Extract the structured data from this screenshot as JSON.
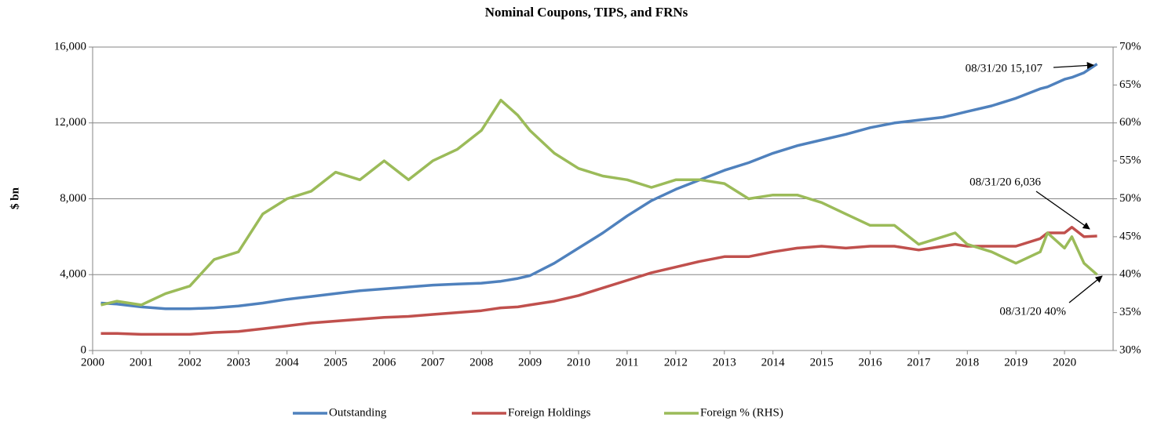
{
  "chart_data": {
    "type": "line",
    "title": "Nominal Coupons, TIPS, and FRNs",
    "y_label": "$ bn",
    "x": [
      2000.17,
      2000.5,
      2001.0,
      2001.5,
      2002.0,
      2002.5,
      2003.0,
      2003.5,
      2004.0,
      2004.5,
      2005.0,
      2005.5,
      2006.0,
      2006.5,
      2007.0,
      2007.5,
      2008.0,
      2008.4,
      2008.75,
      2009.0,
      2009.5,
      2010.0,
      2010.5,
      2011.0,
      2011.5,
      2012.0,
      2012.5,
      2013.0,
      2013.5,
      2014.0,
      2014.5,
      2015.0,
      2015.5,
      2016.0,
      2016.5,
      2017.0,
      2017.5,
      2017.75,
      2018.0,
      2018.5,
      2019.0,
      2019.5,
      2019.65,
      2020.0,
      2020.15,
      2020.4,
      2020.67
    ],
    "series": [
      {
        "name": "Outstanding",
        "color": "#4f81bd",
        "values": [
          2500,
          2450,
          2300,
          2200,
          2200,
          2250,
          2350,
          2500,
          2700,
          2850,
          3000,
          3150,
          3250,
          3350,
          3450,
          3500,
          3550,
          3650,
          3800,
          3950,
          4600,
          5400,
          6200,
          7100,
          7900,
          8500,
          9000,
          9500,
          9900,
          10400,
          10800,
          11100,
          11400,
          11750,
          12000,
          12150,
          12300,
          12450,
          12600,
          12900,
          13300,
          13800,
          13900,
          14300,
          14400,
          14650,
          15107
        ]
      },
      {
        "name": "Foreign Holdings",
        "color": "#c0504d",
        "values": [
          900,
          900,
          850,
          850,
          850,
          950,
          1000,
          1150,
          1300,
          1450,
          1550,
          1650,
          1750,
          1800,
          1900,
          2000,
          2100,
          2250,
          2300,
          2400,
          2600,
          2900,
          3300,
          3700,
          4100,
          4400,
          4700,
          4950,
          4950,
          5200,
          5400,
          5500,
          5400,
          5500,
          5500,
          5300,
          5500,
          5600,
          5500,
          5500,
          5500,
          5900,
          6200,
          6200,
          6500,
          6000,
          6036
        ]
      },
      {
        "name": "Foreign % (RHS)",
        "color": "#9bbb59",
        "axis": "y2",
        "values": [
          36,
          36.5,
          36,
          37.5,
          38.5,
          42,
          43,
          48,
          50,
          51,
          53.5,
          52.5,
          55,
          52.5,
          55,
          56.5,
          59,
          63,
          61,
          59,
          56,
          54,
          53,
          52.5,
          51.5,
          52.5,
          52.5,
          52,
          50,
          50.5,
          50.5,
          49.5,
          48,
          46.5,
          46.5,
          44,
          45,
          45.5,
          44,
          43,
          41.5,
          43,
          45.5,
          43.5,
          45,
          41.5,
          40
        ]
      }
    ],
    "xlim": [
      2000,
      2021
    ],
    "xticks": [
      2000,
      2001,
      2002,
      2003,
      2004,
      2005,
      2006,
      2007,
      2008,
      2009,
      2010,
      2011,
      2012,
      2013,
      2014,
      2015,
      2016,
      2017,
      2018,
      2019,
      2020
    ],
    "ylim": [
      0,
      16000
    ],
    "yticks": [
      0,
      {
        "value": 4000,
        "label": "4,000"
      },
      {
        "value": 8000,
        "label": "8,000"
      },
      {
        "value": 12000,
        "label": "12,000"
      },
      {
        "value": 16000,
        "label": "16,000"
      }
    ],
    "y2lim": [
      30,
      70
    ],
    "y2ticks": [
      {
        "value": 30,
        "label": "30%"
      },
      {
        "value": 35,
        "label": "35%"
      },
      {
        "value": 40,
        "label": "40%"
      },
      {
        "value": 45,
        "label": "45%"
      },
      {
        "value": 50,
        "label": "50%"
      },
      {
        "value": 55,
        "label": "55%"
      },
      {
        "value": 60,
        "label": "60%"
      },
      {
        "value": 65,
        "label": "65%"
      },
      {
        "value": 70,
        "label": "70%"
      }
    ],
    "grid": true,
    "annotations": [
      "08/31/20 15,107",
      "08/31/20 6,036",
      "08/31/20 40%"
    ],
    "legend": "bottom"
  }
}
